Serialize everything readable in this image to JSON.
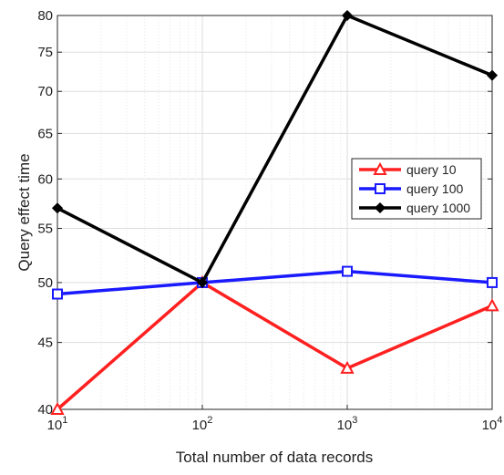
{
  "chart_data": {
    "type": "line",
    "xlabel": "Total number of data records",
    "ylabel": "Query effect time",
    "xscale": "log",
    "x": [
      10,
      100,
      1000,
      10000
    ],
    "x_tick_labels": [
      {
        "base": "10",
        "exp": "1"
      },
      {
        "base": "10",
        "exp": "2"
      },
      {
        "base": "10",
        "exp": "3"
      },
      {
        "base": "10",
        "exp": "4"
      }
    ],
    "ylim": [
      40,
      80
    ],
    "yticks": [
      40,
      45,
      50,
      55,
      60,
      65,
      70,
      75,
      80
    ],
    "yscale": "log",
    "grid": true,
    "legend_position": "right",
    "series": [
      {
        "name": "query 10",
        "color": "#ff2020",
        "marker": "triangle",
        "values": [
          40,
          50,
          43,
          48
        ]
      },
      {
        "name": "query 100",
        "color": "#1a1aff",
        "marker": "square",
        "values": [
          49,
          50,
          51,
          50
        ]
      },
      {
        "name": "query 1000",
        "color": "#000000",
        "marker": "diamond",
        "values": [
          57,
          50,
          80,
          72
        ]
      }
    ]
  }
}
